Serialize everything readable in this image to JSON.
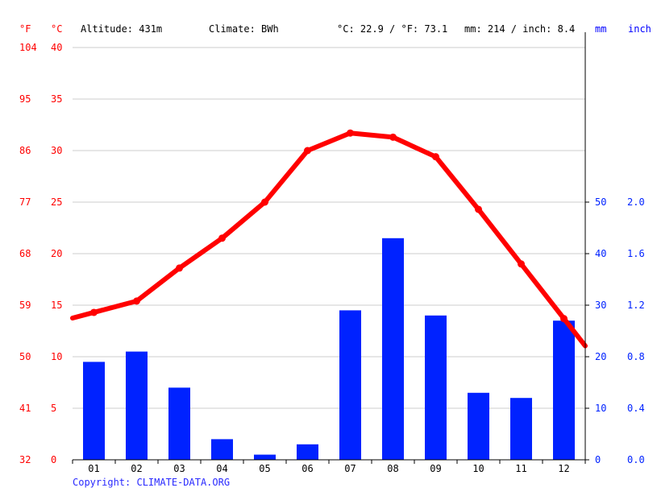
{
  "header": {
    "unit_f": "°F",
    "unit_c": "°C",
    "altitude": "Altitude: 431m",
    "climate": "Climate: BWh",
    "temp_avg": "°C: 22.9 / °F: 73.1",
    "precip_total": "mm: 214 / inch: 8.4",
    "unit_mm": "mm",
    "unit_inch": "inch"
  },
  "copyright": "Copyright: CLIMATE-DATA.ORG",
  "colors": {
    "temperature": "#ff0000",
    "precipitation": "#0022ff",
    "grid": "#cccccc",
    "axis": "#000000"
  },
  "chart_data": {
    "type": "bar",
    "categories": [
      "01",
      "02",
      "03",
      "04",
      "05",
      "06",
      "07",
      "08",
      "09",
      "10",
      "11",
      "12"
    ],
    "series": [
      {
        "type": "bar",
        "axis": "right",
        "values": [
          19,
          21,
          14,
          4,
          1,
          3,
          29,
          43,
          28,
          13,
          12,
          27
        ]
      },
      {
        "type": "line",
        "axis": "left",
        "values": [
          14.3,
          15.4,
          18.6,
          21.5,
          25.0,
          30.0,
          31.7,
          31.3,
          29.4,
          24.3,
          19.0,
          13.7
        ]
      }
    ],
    "y_left": {
      "ticks_c": [
        0,
        5,
        10,
        15,
        20,
        25,
        30,
        35,
        40
      ],
      "ticks_f": [
        32,
        41,
        50,
        59,
        68,
        77,
        86,
        95,
        104
      ],
      "ylim": [
        0,
        40
      ]
    },
    "y_right": {
      "ticks_mm": [
        0,
        10,
        20,
        30,
        40,
        50
      ],
      "ticks_inch": [
        "0.0",
        "0.4",
        "0.8",
        "1.2",
        "1.6",
        "2.0"
      ],
      "ylim": [
        0,
        80
      ]
    },
    "grid": true
  }
}
